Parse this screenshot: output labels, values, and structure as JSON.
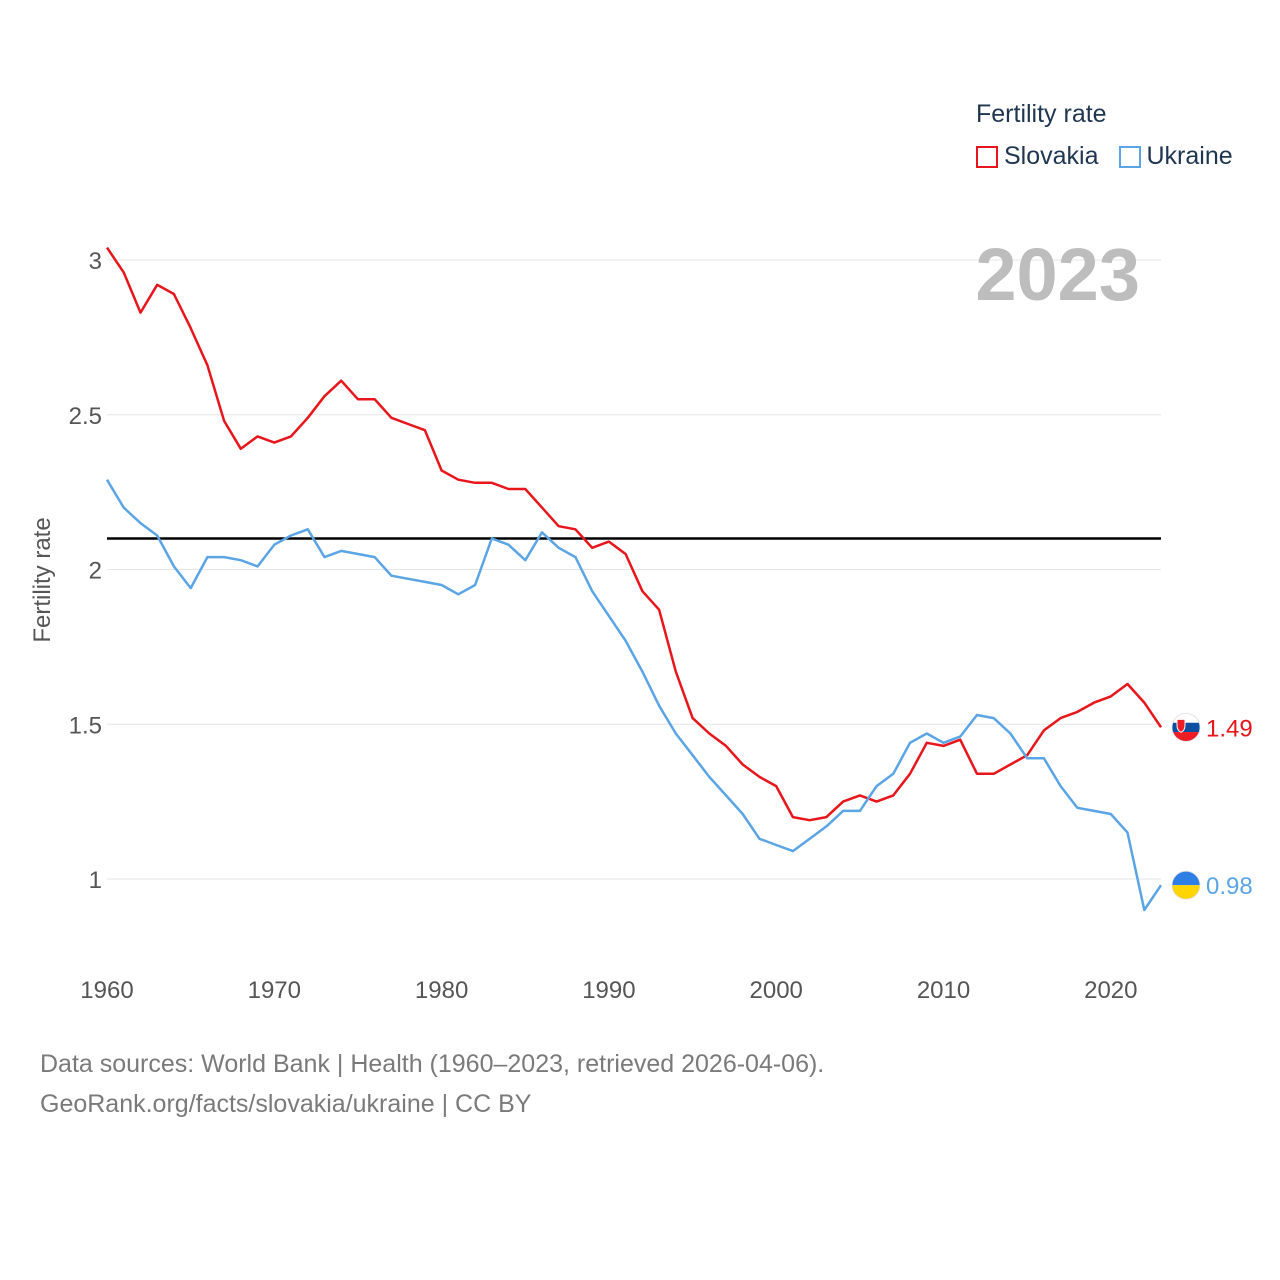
{
  "legend": {
    "title": "Fertility rate",
    "items": [
      {
        "label": "Slovakia",
        "color": "#e8151b"
      },
      {
        "label": "Ukraine",
        "color": "#5ba4e5"
      }
    ]
  },
  "chart_data": {
    "type": "line",
    "title": "",
    "year_label": "2023",
    "xlabel": "",
    "ylabel": "Fertility rate",
    "xlim": [
      1960,
      2023
    ],
    "ylim": [
      0.8,
      3.05
    ],
    "x_ticks": [
      1960,
      1970,
      1980,
      1990,
      2000,
      2010,
      2020
    ],
    "y_ticks": [
      1,
      1.5,
      2,
      2.5,
      3
    ],
    "y_tick_labels": [
      "1",
      "1.5",
      "2",
      "2.5",
      "3"
    ],
    "reference_line": {
      "value": 2.1,
      "color": "#000000"
    },
    "x": [
      1960,
      1961,
      1962,
      1963,
      1964,
      1965,
      1966,
      1967,
      1968,
      1969,
      1970,
      1971,
      1972,
      1973,
      1974,
      1975,
      1976,
      1977,
      1978,
      1979,
      1980,
      1981,
      1982,
      1983,
      1984,
      1985,
      1986,
      1987,
      1988,
      1989,
      1990,
      1991,
      1992,
      1993,
      1994,
      1995,
      1996,
      1997,
      1998,
      1999,
      2000,
      2001,
      2002,
      2003,
      2004,
      2005,
      2006,
      2007,
      2008,
      2009,
      2010,
      2011,
      2012,
      2013,
      2014,
      2015,
      2016,
      2017,
      2018,
      2019,
      2020,
      2021,
      2022,
      2023
    ],
    "series": [
      {
        "name": "Slovakia",
        "color": "#e8151b",
        "end_label": "1.49",
        "flag": "slovakia",
        "values": [
          3.04,
          2.96,
          2.83,
          2.92,
          2.89,
          2.78,
          2.66,
          2.48,
          2.39,
          2.43,
          2.41,
          2.43,
          2.49,
          2.56,
          2.61,
          2.55,
          2.55,
          2.49,
          2.47,
          2.45,
          2.32,
          2.29,
          2.28,
          2.28,
          2.26,
          2.26,
          2.2,
          2.14,
          2.13,
          2.07,
          2.09,
          2.05,
          1.93,
          1.87,
          1.67,
          1.52,
          1.47,
          1.43,
          1.37,
          1.33,
          1.3,
          1.2,
          1.19,
          1.2,
          1.25,
          1.27,
          1.25,
          1.27,
          1.34,
          1.44,
          1.43,
          1.45,
          1.34,
          1.34,
          1.37,
          1.4,
          1.48,
          1.52,
          1.54,
          1.57,
          1.59,
          1.63,
          1.57,
          1.49
        ]
      },
      {
        "name": "Ukraine",
        "color": "#5ba4e5",
        "end_label": "0.98",
        "flag": "ukraine",
        "values": [
          2.29,
          2.2,
          2.15,
          2.11,
          2.01,
          1.94,
          2.04,
          2.04,
          2.03,
          2.01,
          2.08,
          2.11,
          2.13,
          2.04,
          2.06,
          2.05,
          2.04,
          1.98,
          1.97,
          1.96,
          1.95,
          1.92,
          1.95,
          2.1,
          2.08,
          2.03,
          2.12,
          2.07,
          2.04,
          1.93,
          1.85,
          1.77,
          1.67,
          1.56,
          1.47,
          1.4,
          1.33,
          1.27,
          1.21,
          1.13,
          1.11,
          1.09,
          1.13,
          1.17,
          1.22,
          1.22,
          1.3,
          1.34,
          1.44,
          1.47,
          1.44,
          1.46,
          1.53,
          1.52,
          1.47,
          1.39,
          1.39,
          1.3,
          1.23,
          1.22,
          1.21,
          1.15,
          0.9,
          0.98
        ]
      }
    ]
  },
  "footer": {
    "line1": "Data sources: World Bank | Health (1960–2023, retrieved 2026-04-06).",
    "line2": "GeoRank.org/facts/slovakia/ukraine | CC BY"
  }
}
